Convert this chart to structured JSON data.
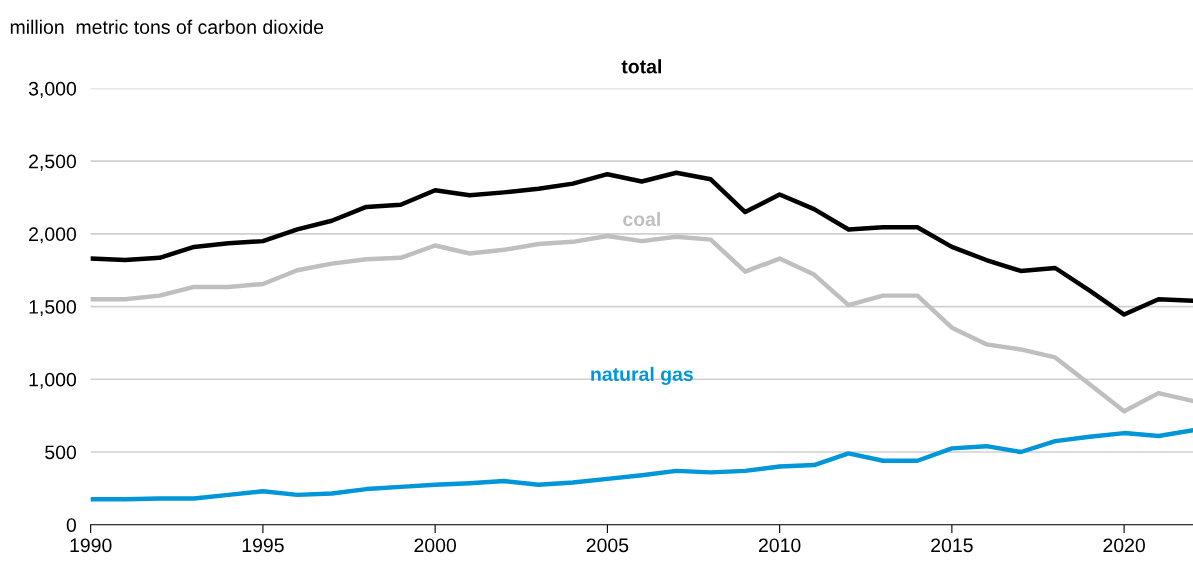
{
  "chart_data": {
    "type": "line",
    "ylabel": "million  metric tons of carbon dioxide",
    "x": [
      1990,
      1991,
      1992,
      1993,
      1994,
      1995,
      1996,
      1997,
      1998,
      1999,
      2000,
      2001,
      2002,
      2003,
      2004,
      2005,
      2006,
      2007,
      2008,
      2009,
      2010,
      2011,
      2012,
      2013,
      2014,
      2015,
      2016,
      2017,
      2018,
      2019,
      2020,
      2021,
      2022
    ],
    "series": [
      {
        "name": "total",
        "color": "#000000",
        "values": [
          1830,
          1820,
          1835,
          1910,
          1935,
          1950,
          2030,
          2090,
          2185,
          2200,
          2300,
          2265,
          2285,
          2310,
          2345,
          2410,
          2360,
          2420,
          2375,
          2150,
          2270,
          2170,
          2030,
          2045,
          2045,
          1910,
          1820,
          1745,
          1765,
          1610,
          1445,
          1550,
          1540
        ]
      },
      {
        "name": "coal",
        "color": "#bfbfbf",
        "values": [
          1550,
          1550,
          1575,
          1635,
          1635,
          1655,
          1750,
          1795,
          1825,
          1835,
          1920,
          1865,
          1890,
          1930,
          1945,
          1985,
          1950,
          1980,
          1960,
          1740,
          1830,
          1720,
          1510,
          1575,
          1575,
          1355,
          1240,
          1205,
          1150,
          965,
          780,
          905,
          850
        ]
      },
      {
        "name": "natural gas",
        "color": "#0096d7",
        "values": [
          175,
          175,
          180,
          180,
          205,
          230,
          205,
          215,
          245,
          260,
          275,
          285,
          300,
          275,
          290,
          315,
          340,
          370,
          360,
          370,
          400,
          410,
          490,
          440,
          440,
          525,
          540,
          500,
          575,
          605,
          630,
          610,
          650
        ]
      }
    ],
    "xlim": [
      1990,
      2022
    ],
    "xticks": [
      1990,
      1995,
      2000,
      2005,
      2010,
      2015,
      2020
    ],
    "ylim": [
      0,
      3000
    ],
    "yticks": [
      0,
      500,
      {
        "value": 1000,
        "label": "1,000"
      },
      {
        "value": 1500,
        "label": "1,500"
      },
      {
        "value": 2000,
        "label": "2,000"
      },
      {
        "value": 2500,
        "label": "2,500"
      },
      {
        "value": 3000,
        "label": "3,000"
      }
    ],
    "grid": "y",
    "legend": false,
    "marker": "none",
    "line_style": "solid"
  }
}
